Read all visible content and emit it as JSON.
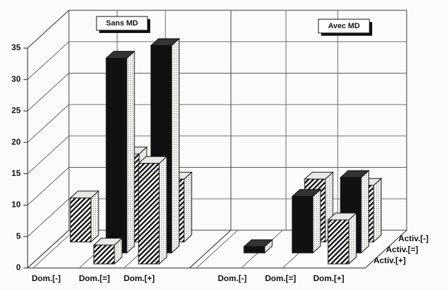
{
  "chart_data": {
    "type": "bar3d",
    "categories": [
      "Dom.[-]",
      "Dom.[=]",
      "Dom.[+]",
      "Dom.[-]",
      "Dom.[=]",
      "Dom.[+]"
    ],
    "annotations": [
      "Sans MD",
      "Avec MD"
    ],
    "series": [
      {
        "name": "Activ.[-]",
        "color": "#ffffff",
        "pattern": "hatch",
        "values": [
          7,
          14,
          10,
          null,
          10,
          9
        ]
      },
      {
        "name": "Activ.[=]",
        "color": "#111111",
        "pattern": "solid",
        "values": [
          null,
          31,
          33,
          1,
          9,
          12
        ]
      },
      {
        "name": "Activ.[+]",
        "color": "#ffffff",
        "pattern": "hatch",
        "values": [
          null,
          3,
          16,
          null,
          null,
          7
        ]
      }
    ],
    "ylim": [
      0,
      35
    ],
    "yticks": [
      0,
      5,
      10,
      15,
      20,
      25,
      30,
      35
    ],
    "grid": true
  }
}
